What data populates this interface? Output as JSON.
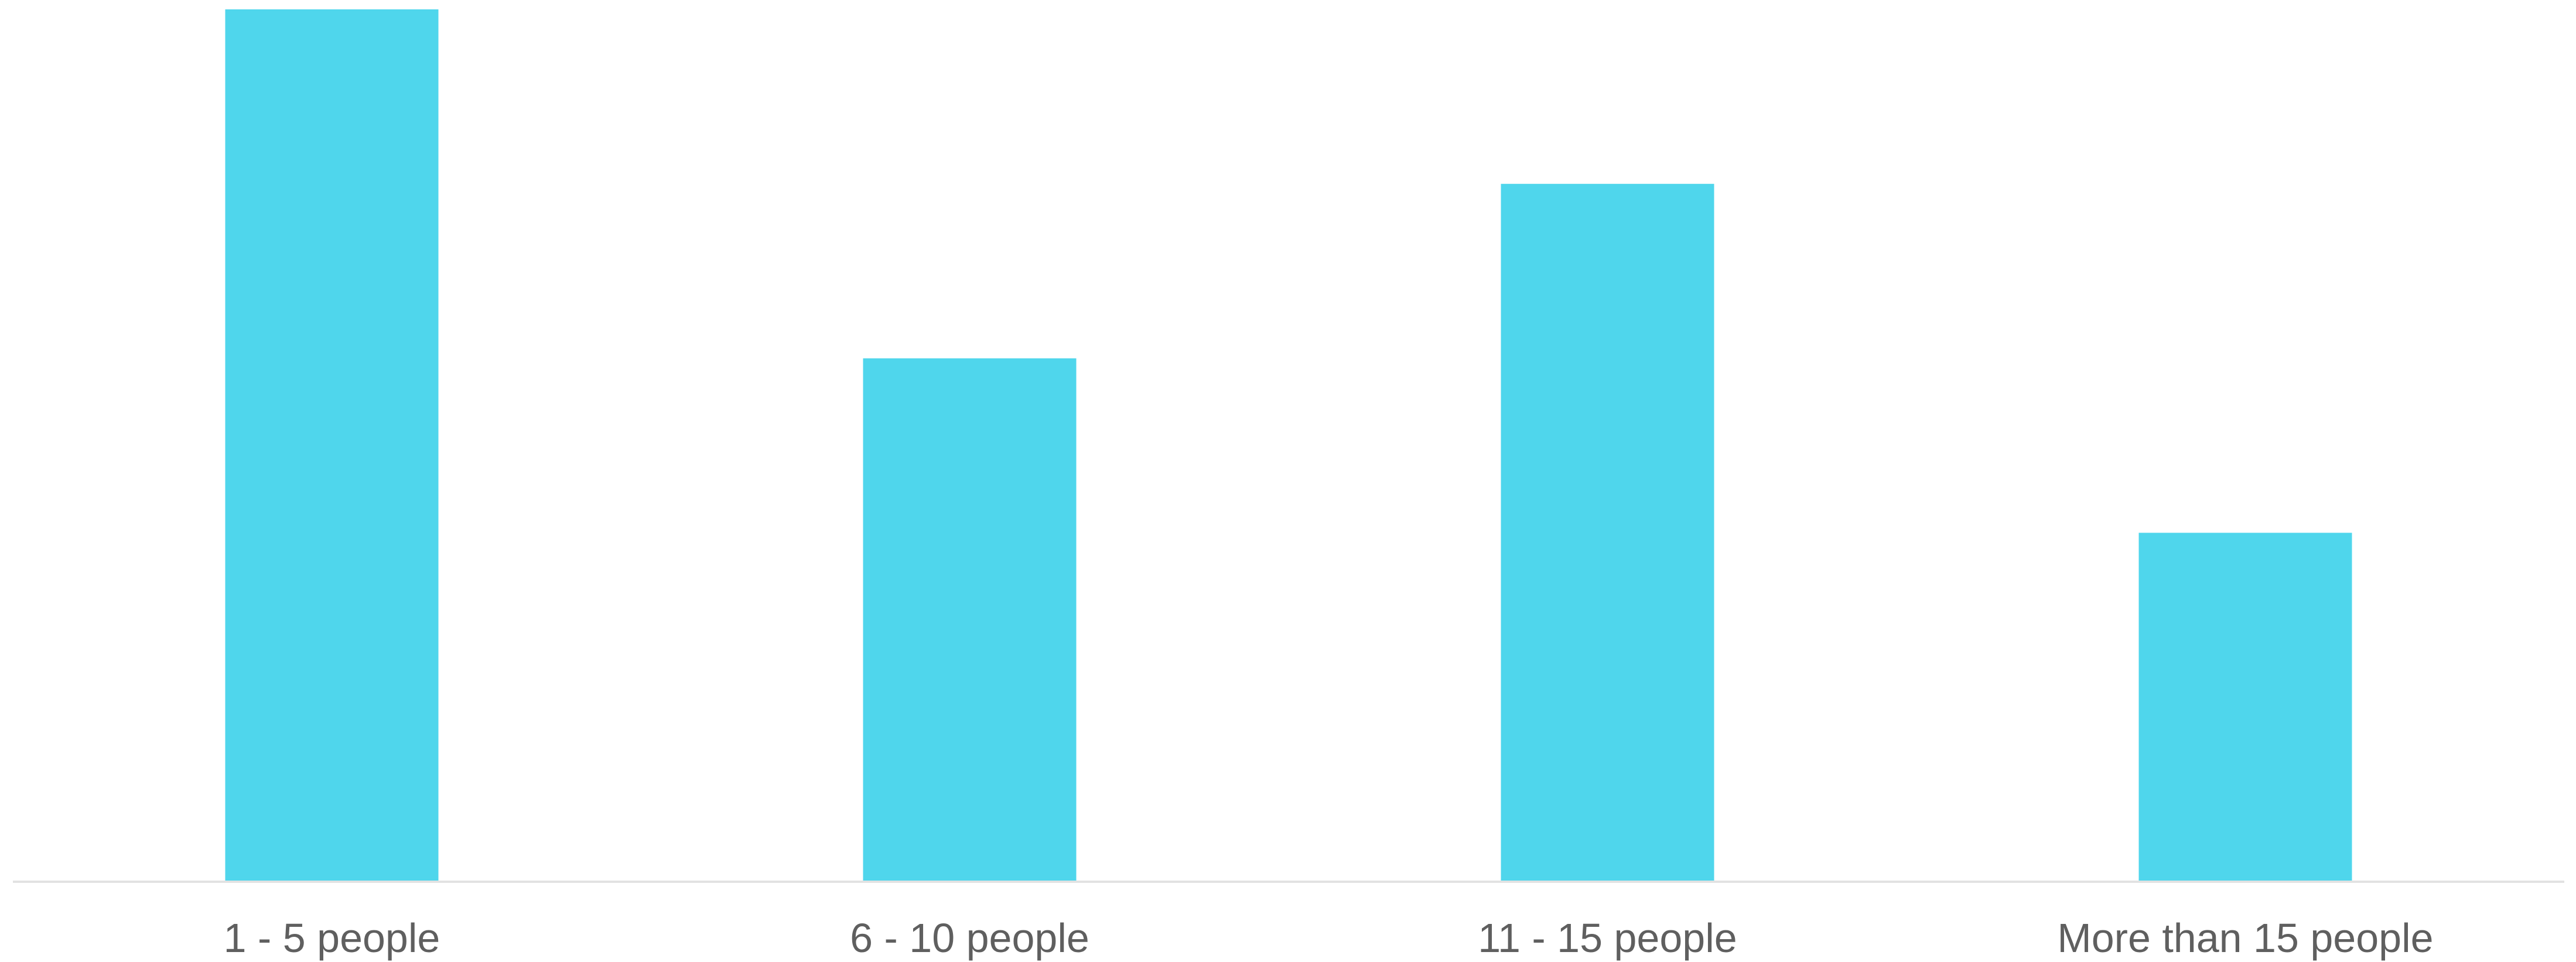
{
  "chart_data": {
    "type": "bar",
    "categories": [
      "1 - 5 people",
      "6 - 10 people",
      "11 - 15 people",
      "More than 15 people"
    ],
    "values": [
      5,
      3,
      4,
      2
    ],
    "title": "",
    "xlabel": "",
    "ylabel": "",
    "ylim": [
      0,
      5
    ],
    "grid": false,
    "legend": "none"
  },
  "colors": {
    "bar": "#4fd6ec",
    "axis": "#e2e2e2",
    "label": "#5f5f5f"
  }
}
